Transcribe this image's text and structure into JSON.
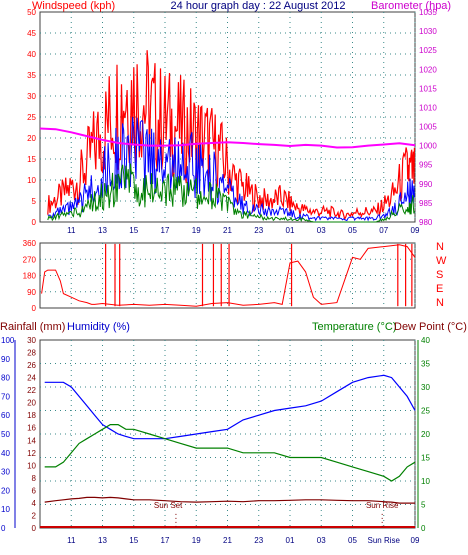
{
  "chart_data": [
    {
      "type": "line",
      "title": "24 hour graph day : 22 August 2012",
      "left_axis_label": "Windspeed (kph)",
      "right_axis_label": "Barometer (hpa)",
      "x_ticks": [
        "11",
        "13",
        "15",
        "17",
        "19",
        "21",
        "23",
        "01",
        "03",
        "05",
        "07",
        "09"
      ],
      "left_ticks": [
        0,
        5,
        10,
        15,
        20,
        25,
        30,
        35,
        40,
        45,
        50
      ],
      "right_ticks": [
        980,
        985,
        990,
        995,
        1000,
        1005,
        1010,
        1015,
        1020,
        1025,
        1030,
        1035
      ],
      "ylim": [
        0,
        50
      ],
      "y2lim": [
        980,
        1035
      ],
      "grid": true,
      "colors": {
        "gust": "#ff0000",
        "average": "#0000ff",
        "wind": "#008000",
        "barometer": "#ff00ff",
        "left_label": "#ff0000",
        "right_label": "#cc00cc",
        "title": "#000080"
      },
      "series": [
        {
          "x": [
            9.5,
            10.5,
            11.5,
            12.5,
            13.5,
            14.5,
            15.5,
            16.5,
            17.5,
            18.5,
            19.5,
            20.5,
            21.5,
            22.5,
            23.5,
            0.5,
            1.5,
            2.5,
            3.5,
            4.5,
            5.5,
            6.5,
            7.5,
            8.5,
            9.0
          ],
          "values": [
            5,
            8,
            12,
            22,
            30,
            38,
            35,
            30,
            28,
            26,
            24,
            20,
            12,
            8,
            6,
            7,
            4,
            3,
            3,
            2,
            3,
            3,
            7,
            15,
            14
          ]
        },
        {
          "x": [
            9.5,
            10.5,
            11.5,
            12.5,
            13.5,
            14.5,
            15.5,
            16.5,
            17.5,
            18.5,
            19.5,
            20.5,
            21.5,
            22.5,
            23.5,
            0.5,
            1.5,
            2.5,
            3.5,
            4.5,
            5.5,
            6.5,
            7.5,
            8.5,
            9.0
          ],
          "values": [
            2,
            3,
            5,
            11,
            16,
            20,
            19,
            18,
            17,
            17,
            15,
            12,
            6,
            4,
            3,
            3,
            2,
            1,
            1,
            1,
            1,
            1,
            3,
            8,
            8
          ]
        },
        {
          "x": [
            9.5,
            10.5,
            11.5,
            12.5,
            13.5,
            14.5,
            15.5,
            16.5,
            17.5,
            18.5,
            19.5,
            20.5,
            21.5,
            22.5,
            23.5,
            0.5,
            1.5,
            2.5,
            3.5,
            4.5,
            5.5,
            6.5,
            7.5,
            8.5,
            9.0
          ],
          "values": [
            1,
            2,
            3,
            6,
            9,
            11,
            10,
            9,
            9,
            9,
            8,
            7,
            3,
            2,
            1,
            1,
            1,
            0,
            0,
            0,
            0,
            0,
            2,
            5,
            5
          ]
        },
        {
          "x": [
            9.0,
            10.0,
            11.0,
            12.0,
            13.0,
            14.0,
            15.0,
            16.0,
            17.0,
            18.0,
            19.0,
            20.0,
            21.0,
            22.0,
            23.0,
            0.0,
            1.0,
            2.0,
            3.0,
            4.0,
            5.0,
            6.0,
            7.0,
            8.0,
            9.0
          ],
          "values": [
            1004.5,
            1004.3,
            1003.5,
            1002.5,
            1001.5,
            1000.7,
            1000.3,
            1000.0,
            1000.0,
            1000.1,
            1000.5,
            1000.7,
            1000.9,
            1000.7,
            1000.4,
            1000.2,
            999.9,
            1000.2,
            1000.0,
            999.5,
            999.6,
            1000.0,
            1000.3,
            1000.6,
            1000.1
          ],
          "axis": "right"
        }
      ]
    },
    {
      "type": "line",
      "right_axis_label": "N W S E N",
      "left_ticks": [
        0,
        90,
        180,
        270,
        360
      ],
      "x_ticks": [
        "11",
        "13",
        "15",
        "17",
        "19",
        "21",
        "23",
        "01",
        "03",
        "05",
        "07",
        "09"
      ],
      "ylim": [
        0,
        360
      ],
      "grid": true,
      "colors": {
        "direction": "#ff0000",
        "label": "#ff0000"
      },
      "series": [
        {
          "x": [
            9.1,
            9.3,
            9.5,
            10.0,
            10.3,
            10.5,
            11.0,
            11.5,
            12.0,
            12.3,
            12.5,
            13.0,
            14.0,
            15.0,
            16.0,
            17.0,
            18.0,
            19.0,
            20.0,
            21.0,
            22.0,
            23.0,
            0.0,
            0.5,
            1.0,
            1.5,
            2.0,
            2.5,
            3.0,
            4.0,
            5.0,
            5.5,
            6.0,
            7.0,
            8.0,
            8.5,
            9.0
          ],
          "values": [
            80,
            200,
            210,
            210,
            150,
            80,
            60,
            40,
            30,
            20,
            20,
            25,
            15,
            20,
            15,
            20,
            15,
            10,
            25,
            30,
            15,
            20,
            30,
            20,
            250,
            260,
            200,
            60,
            20,
            30,
            280,
            270,
            330,
            340,
            350,
            340,
            280
          ]
        }
      ]
    },
    {
      "type": "line",
      "left_axis_label": "Rainfall (mm)",
      "left2_axis_label": "Humidity (%)",
      "right_axis_label": "Temperature (°C)",
      "right2_axis_label": "Dew Point (°C)",
      "rain_ticks": [
        0,
        2,
        4,
        6,
        8,
        10,
        12,
        14,
        16,
        18,
        20,
        22,
        24,
        26,
        28,
        30
      ],
      "humidity_ticks": [
        0,
        10,
        20,
        30,
        40,
        50,
        60,
        70,
        80,
        90,
        100
      ],
      "temp_ticks": [
        0,
        5,
        10,
        15,
        20,
        25,
        30,
        35,
        40
      ],
      "x_ticks": [
        "11",
        "13",
        "15",
        "17",
        "19",
        "21",
        "23",
        "01",
        "03",
        "05",
        "Sun Rise",
        "09"
      ],
      "annotations": [
        "Sun Set",
        "Sun Rise"
      ],
      "y2lim": [
        0,
        40
      ],
      "grid": true,
      "colors": {
        "temperature": "#0000ff",
        "humidity": "#008000",
        "dew_point": "#800000",
        "rainfall": "#cc0000",
        "rain_label": "#800000",
        "humidity_label": "#0000cc",
        "temp_label": "#008000",
        "dew_label": "#800000"
      },
      "series": [
        {
          "x": [
            9.3,
            10.0,
            10.5,
            11.0,
            11.5,
            12.0,
            12.5,
            13.0,
            13.5,
            14.0,
            14.5,
            15.0,
            16.0,
            17.0,
            18.0,
            19.0,
            20.0,
            21.0,
            22.0,
            23.0,
            0.0,
            1.0,
            2.0,
            3.0,
            4.0,
            5.0,
            6.0,
            7.0,
            7.5,
            8.0,
            8.5,
            9.0
          ],
          "values": [
            31,
            31,
            31,
            30,
            28,
            26,
            24,
            22,
            21,
            20,
            19.5,
            19,
            19,
            19,
            19.5,
            20,
            20.5,
            21,
            23,
            24,
            25,
            25.5,
            26,
            27,
            29,
            31,
            32,
            32.5,
            32,
            30,
            28,
            25
          ]
        },
        {
          "x": [
            9.3,
            10.0,
            10.5,
            11.0,
            11.5,
            12.0,
            12.5,
            13.0,
            13.5,
            14.0,
            14.5,
            15.0,
            16.0,
            17.0,
            18.0,
            19.0,
            20.0,
            21.0,
            22.0,
            23.0,
            0.0,
            1.0,
            2.0,
            3.0,
            4.0,
            5.0,
            6.0,
            7.0,
            7.5,
            8.0,
            8.5,
            9.0
          ],
          "values": [
            13,
            13,
            14,
            16,
            18,
            19,
            20,
            21,
            22,
            22,
            21,
            21,
            20,
            19,
            18,
            17,
            17,
            17,
            16,
            16,
            16,
            15,
            15,
            15,
            14,
            13,
            12,
            11,
            10,
            11,
            13,
            14
          ]
        },
        {
          "x": [
            9.3,
            10.0,
            10.5,
            11.0,
            11.5,
            12.0,
            12.5,
            13.0,
            13.5,
            14.0,
            14.5,
            15.0,
            16.0,
            17.0,
            18.0,
            19.0,
            20.0,
            21.0,
            22.0,
            23.0,
            0.0,
            1.0,
            2.0,
            3.0,
            4.0,
            5.0,
            6.0,
            7.0,
            7.5,
            8.0,
            8.5,
            9.0
          ],
          "values": [
            5.5,
            5.8,
            6.0,
            6.2,
            6.3,
            6.5,
            6.5,
            6.4,
            6.5,
            6.4,
            6.2,
            6.0,
            6.0,
            5.8,
            5.6,
            5.5,
            5.6,
            5.7,
            5.6,
            5.8,
            5.8,
            5.9,
            6.0,
            6.0,
            5.9,
            5.8,
            5.8,
            5.6,
            5.5,
            5.3,
            5.3,
            5.3
          ]
        },
        {
          "x": [
            9.3,
            9.0
          ],
          "values": [
            0,
            0
          ]
        }
      ]
    }
  ]
}
